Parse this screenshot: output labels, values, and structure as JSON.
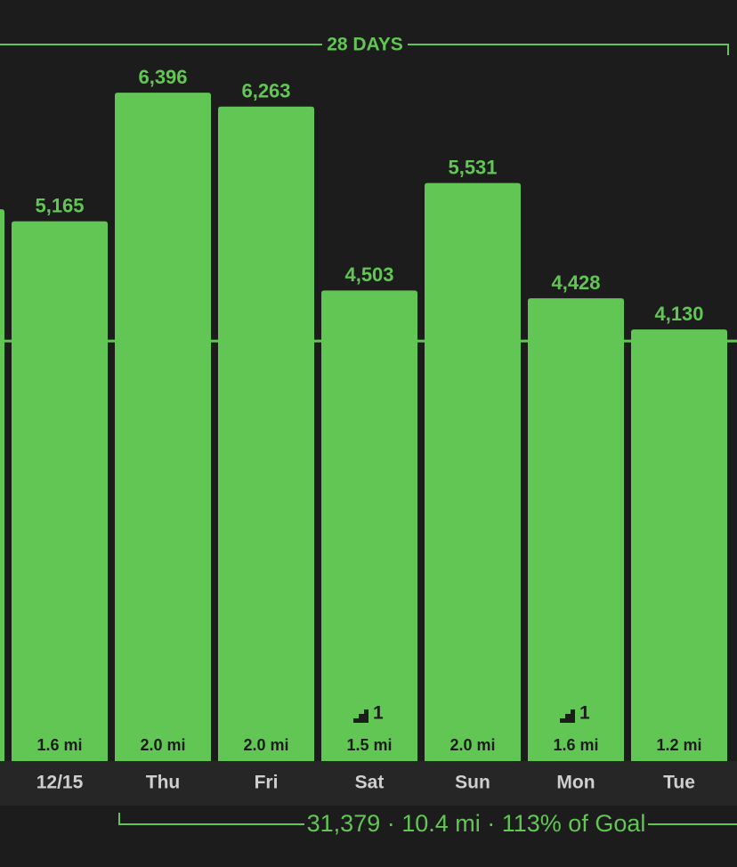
{
  "chart_data": {
    "type": "bar",
    "period_label": "28 DAYS",
    "summary": "31,379 · 10.4 mi · 113% of Goal",
    "categories": [
      null,
      "12/15",
      "Thu",
      "Fri",
      "Sat",
      "Sun",
      "Mon",
      "Tue"
    ],
    "values": [
      5280,
      5165,
      6396,
      6263,
      4503,
      5531,
      4428,
      4130
    ],
    "value_labels": [
      null,
      "5,165",
      "6,396",
      "6,263",
      "4,503",
      "5,531",
      "4,428",
      "4,130"
    ],
    "distance_labels": [
      null,
      "1.6 mi",
      "2.0 mi",
      "2.0 mi",
      "1.5 mi",
      "2.0 mi",
      "1.6 mi",
      "1.2 mi"
    ],
    "floors": [
      null,
      null,
      null,
      null,
      1,
      null,
      1,
      null
    ],
    "goal": 4020,
    "color": "#62c655",
    "ylim": [
      0,
      7283
    ]
  }
}
